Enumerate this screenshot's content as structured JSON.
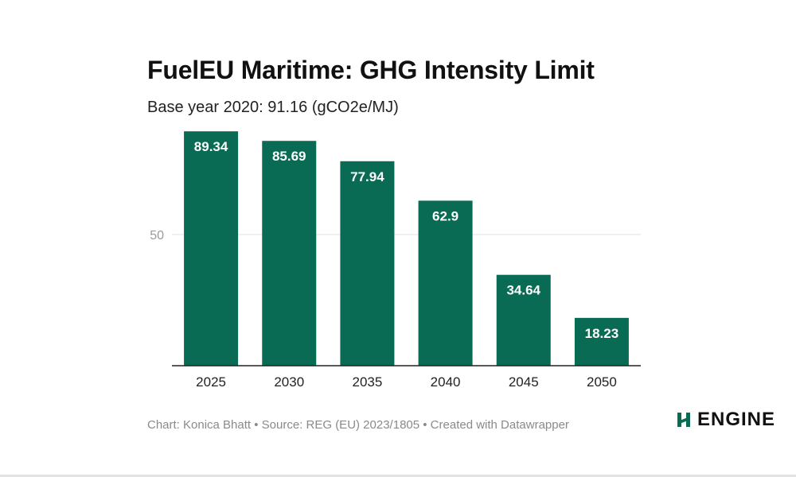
{
  "chart_data": {
    "type": "bar",
    "title": "FuelEU Maritime: GHG Intensity Limit",
    "subtitle": "Base year 2020: 91.16 (gCO2e/MJ)",
    "categories": [
      "2025",
      "2030",
      "2035",
      "2040",
      "2045",
      "2050"
    ],
    "values": [
      89.34,
      85.69,
      77.94,
      62.9,
      34.64,
      18.23
    ],
    "value_labels": [
      "89.34",
      "85.69",
      "77.94",
      "62.9",
      "34.64",
      "18.23"
    ],
    "ylim": [
      0,
      100
    ],
    "yticks": [
      50
    ],
    "ytick_labels": [
      "50"
    ],
    "xlabel": "",
    "ylabel": "",
    "grid": true,
    "bar_color": "#0a6b55"
  },
  "footer": {
    "credits": "Chart: Konica Bhatt • Source: REG (EU) 2023/1805 • Created with Datawrapper"
  },
  "logo": {
    "text": "ENGINE",
    "icon": "engine-logo-icon",
    "color": "#0a6b55"
  }
}
